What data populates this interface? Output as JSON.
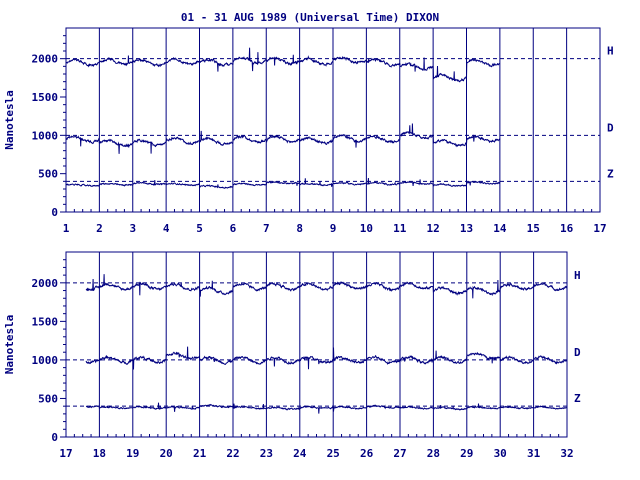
{
  "chart_data": {
    "type": "line",
    "title": "01 - 31 AUG 1989 (Universal Time) DIXON",
    "ylabel": "Nanotesla",
    "color": "#000080",
    "panels": [
      {
        "id": "top",
        "xlim": [
          1,
          17
        ],
        "ylim": [
          0,
          2400
        ],
        "x_ticks": [
          "1",
          "2",
          "3",
          "4",
          "5",
          "6",
          "7",
          "8",
          "9",
          "10",
          "11",
          "12",
          "13",
          "14",
          "15",
          "16",
          "17"
        ],
        "y_ticks": [
          "0",
          "500",
          "1000",
          "1500",
          "2000"
        ],
        "data_end_day": 14.0,
        "series": [
          {
            "name": "H",
            "baseline": 2000,
            "daily_values": [
              1950,
              1960,
              1950,
              1960,
              1950,
              1980,
              1970,
              1960,
              1980,
              1950,
              1900,
              1750,
              1950,
              1900
            ]
          },
          {
            "name": "D",
            "baseline": 1000,
            "daily_values": [
              950,
              900,
              900,
              930,
              920,
              950,
              950,
              930,
              960,
              950,
              1000,
              900,
              950,
              950
            ]
          },
          {
            "name": "Z",
            "baseline": 400,
            "daily_values": [
              350,
              360,
              370,
              360,
              330,
              360,
              380,
              360,
              370,
              370,
              380,
              350,
              380,
              370
            ]
          }
        ]
      },
      {
        "id": "bottom",
        "xlim": [
          17,
          32
        ],
        "ylim": [
          0,
          2400
        ],
        "x_ticks": [
          "17",
          "18",
          "19",
          "20",
          "21",
          "22",
          "23",
          "24",
          "25",
          "26",
          "27",
          "28",
          "29",
          "30",
          "31",
          "32"
        ],
        "y_ticks": [
          "0",
          "500",
          "1000",
          "1500",
          "2000"
        ],
        "data_start_day": 17.6,
        "series": [
          {
            "name": "H",
            "baseline": 2000,
            "daily_values": [
              1950,
              1950,
              1950,
              1950,
              1900,
              1950,
              1950,
              1950,
              1960,
              1950,
              1960,
              1900,
              1900,
              1950,
              1950
            ]
          },
          {
            "name": "D",
            "baseline": 1000,
            "daily_values": [
              1000,
              1000,
              1000,
              1050,
              1000,
              1000,
              1000,
              1000,
              1000,
              1000,
              1000,
              1000,
              1050,
              1000,
              1000
            ]
          },
          {
            "name": "Z",
            "baseline": 400,
            "daily_values": [
              400,
              380,
              380,
              380,
              400,
              380,
              370,
              380,
              380,
              390,
              380,
              370,
              380,
              380,
              380
            ]
          }
        ]
      }
    ]
  }
}
